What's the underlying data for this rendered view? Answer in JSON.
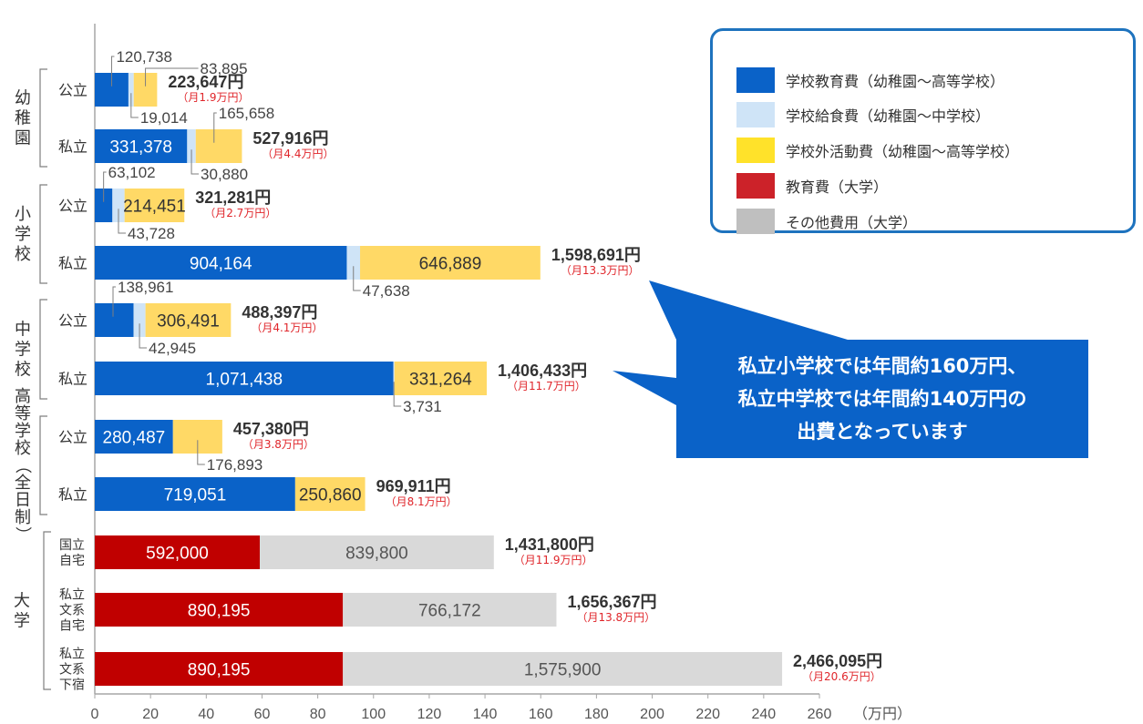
{
  "chart_data": {
    "type": "bar",
    "orientation": "horizontal",
    "stacked": true,
    "xlim": [
      0,
      260
    ],
    "x_ticks": [
      "0",
      "20",
      "40",
      "60",
      "80",
      "100",
      "120",
      "140",
      "160",
      "180",
      "200",
      "220",
      "240",
      "260"
    ],
    "x_unit": "（万円）",
    "legend": [
      {
        "name": "学校教育費（幼稚園～高等学校）",
        "color": "#0a62c8"
      },
      {
        "name": "学校給食費（幼稚園～中学校）",
        "color": "#cfe4f7"
      },
      {
        "name": "学校外活動費（幼稚園～高等学校）",
        "color": "#ffd966"
      },
      {
        "name": "教育費（大学）",
        "color": "#c00000"
      },
      {
        "name": "その他費用（大学）",
        "color": "#d9d9d9"
      }
    ],
    "legend_swatch_colors": [
      "#0a62c8",
      "#cfe4f7",
      "#ffe22a",
      "#cc2229",
      "#bfbfbf"
    ],
    "groups": [
      {
        "label": "幼稚園",
        "rows": [
          "公立",
          "私立"
        ]
      },
      {
        "label": "小学校",
        "rows": [
          "公立",
          "私立"
        ]
      },
      {
        "label": "中学校",
        "rows": [
          "公立",
          "私立"
        ]
      },
      {
        "label": "高等学校（全日制）",
        "rows": [
          "公立",
          "私立"
        ]
      },
      {
        "label": "大学",
        "rows": [
          "国立自宅",
          "私立文系自宅",
          "私立文系下宿"
        ]
      }
    ],
    "rows": [
      {
        "group": "幼稚園",
        "label": "公立",
        "total": "223,647円",
        "monthly": "（月1.9万円）",
        "segments": [
          {
            "series": 0,
            "value": 120738,
            "text": "120,738",
            "label_mode": "callout-above"
          },
          {
            "series": 1,
            "value": 19014,
            "text": "19,014",
            "label_mode": "callout-below"
          },
          {
            "series": 2,
            "value": 83895,
            "text": "83,895",
            "label_mode": "callout-above"
          }
        ]
      },
      {
        "group": "幼稚園",
        "label": "私立",
        "total": "527,916円",
        "monthly": "（月4.4万円）",
        "segments": [
          {
            "series": 0,
            "value": 331378,
            "text": "331,378",
            "label_mode": "inside"
          },
          {
            "series": 1,
            "value": 30880,
            "text": "30,880",
            "label_mode": "callout-below"
          },
          {
            "series": 2,
            "value": 165658,
            "text": "165,658",
            "label_mode": "callout-above"
          }
        ]
      },
      {
        "group": "小学校",
        "label": "公立",
        "total": "321,281円",
        "monthly": "（月2.7万円）",
        "segments": [
          {
            "series": 0,
            "value": 63102,
            "text": "63,102",
            "label_mode": "callout-above"
          },
          {
            "series": 1,
            "value": 43728,
            "text": "43,728",
            "label_mode": "callout-below"
          },
          {
            "series": 2,
            "value": 214451,
            "text": "214,451",
            "label_mode": "inside"
          }
        ]
      },
      {
        "group": "小学校",
        "label": "私立",
        "total": "1,598,691円",
        "monthly": "（月13.3万円）",
        "segments": [
          {
            "series": 0,
            "value": 904164,
            "text": "904,164",
            "label_mode": "inside"
          },
          {
            "series": 1,
            "value": 47638,
            "text": "47,638",
            "label_mode": "callout-below"
          },
          {
            "series": 2,
            "value": 646889,
            "text": "646,889",
            "label_mode": "inside"
          }
        ]
      },
      {
        "group": "中学校",
        "label": "公立",
        "total": "488,397円",
        "monthly": "（月4.1万円）",
        "segments": [
          {
            "series": 0,
            "value": 138961,
            "text": "138,961",
            "label_mode": "callout-above"
          },
          {
            "series": 1,
            "value": 42945,
            "text": "42,945",
            "label_mode": "callout-below"
          },
          {
            "series": 2,
            "value": 306491,
            "text": "306,491",
            "label_mode": "inside"
          }
        ]
      },
      {
        "group": "中学校",
        "label": "私立",
        "total": "1,406,433円",
        "monthly": "（月11.7万円）",
        "segments": [
          {
            "series": 0,
            "value": 1071438,
            "text": "1,071,438",
            "label_mode": "inside"
          },
          {
            "series": 1,
            "value": 3731,
            "text": "3,731",
            "label_mode": "callout-below"
          },
          {
            "series": 2,
            "value": 331264,
            "text": "331,264",
            "label_mode": "inside"
          }
        ]
      },
      {
        "group": "高等学校（全日制）",
        "label": "公立",
        "total": "457,380円",
        "monthly": "（月3.8万円）",
        "segments": [
          {
            "series": 0,
            "value": 280487,
            "text": "280,487",
            "label_mode": "inside"
          },
          {
            "series": 2,
            "value": 176893,
            "text": "176,893",
            "label_mode": "callout-below"
          }
        ]
      },
      {
        "group": "高等学校（全日制）",
        "label": "私立",
        "total": "969,911円",
        "monthly": "（月8.1万円）",
        "segments": [
          {
            "series": 0,
            "value": 719051,
            "text": "719,051",
            "label_mode": "inside"
          },
          {
            "series": 2,
            "value": 250860,
            "text": "250,860",
            "label_mode": "inside"
          }
        ]
      },
      {
        "group": "大学",
        "label": "国立自宅",
        "label_lines": [
          "国立",
          "自宅"
        ],
        "total": "1,431,800円",
        "monthly": "（月11.9万円）",
        "segments": [
          {
            "series": 3,
            "value": 592000,
            "text": "592,000",
            "label_mode": "inside"
          },
          {
            "series": 4,
            "value": 839800,
            "text": "839,800",
            "label_mode": "inside"
          }
        ]
      },
      {
        "group": "大学",
        "label": "私立文系自宅",
        "label_lines": [
          "私立",
          "文系",
          "自宅"
        ],
        "total": "1,656,367円",
        "monthly": "（月13.8万円）",
        "segments": [
          {
            "series": 3,
            "value": 890195,
            "text": "890,195",
            "label_mode": "inside"
          },
          {
            "series": 4,
            "value": 766172,
            "text": "766,172",
            "label_mode": "inside"
          }
        ]
      },
      {
        "group": "大学",
        "label": "私立文系下宿",
        "label_lines": [
          "私立",
          "文系",
          "下宿"
        ],
        "total": "2,466,095円",
        "monthly": "（月20.6万円）",
        "segments": [
          {
            "series": 3,
            "value": 890195,
            "text": "890,195",
            "label_mode": "inside"
          },
          {
            "series": 4,
            "value": 1575900,
            "text": "1,575,900",
            "label_mode": "inside"
          }
        ]
      }
    ]
  },
  "callout": {
    "lines": [
      "私立小学校では年間約160万円、",
      "私立中学校では年間約140万円の",
      "出費となっています"
    ],
    "color": "#0a62c8"
  }
}
